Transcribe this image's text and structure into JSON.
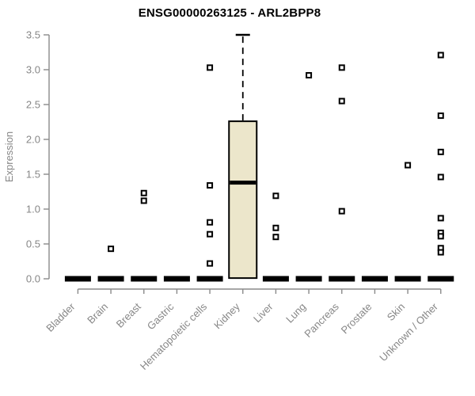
{
  "header": {
    "title": "ENSG00000263125 - ARL2BPP8"
  },
  "chart_data": {
    "type": "boxplot",
    "title": "ENSG00000263125 - ARL2BPP8",
    "xlabel": "",
    "ylabel": "Expression",
    "ylim": [
      0.0,
      3.5
    ],
    "yticks": [
      0.0,
      0.5,
      1.0,
      1.5,
      2.0,
      2.5,
      3.0,
      3.5
    ],
    "grid": false,
    "legend": "none",
    "categories": [
      "Bladder",
      "Brain",
      "Breast",
      "Gastric",
      "Hematopoietic cells",
      "Kidney",
      "Liver",
      "Lung",
      "Pancreas",
      "Prostate",
      "Skin",
      "Unknown / Other"
    ],
    "boxes": [
      {
        "category": "Bladder",
        "q1": 0,
        "median": 0,
        "q3": 0,
        "whisker_low": 0,
        "whisker_high": 0,
        "outliers": []
      },
      {
        "category": "Brain",
        "q1": 0,
        "median": 0,
        "q3": 0,
        "whisker_low": 0,
        "whisker_high": 0,
        "outliers": [
          0.43
        ]
      },
      {
        "category": "Breast",
        "q1": 0,
        "median": 0,
        "q3": 0,
        "whisker_low": 0,
        "whisker_high": 0,
        "outliers": [
          1.23,
          1.12
        ]
      },
      {
        "category": "Gastric",
        "q1": 0,
        "median": 0,
        "q3": 0,
        "whisker_low": 0,
        "whisker_high": 0,
        "outliers": []
      },
      {
        "category": "Hematopoietic cells",
        "q1": 0,
        "median": 0,
        "q3": 0,
        "whisker_low": 0,
        "whisker_high": 0,
        "outliers": [
          3.03,
          1.34,
          0.81,
          0.64,
          0.22
        ]
      },
      {
        "category": "Kidney",
        "q1": 0.01,
        "median": 1.38,
        "q3": 2.26,
        "whisker_low": 0.01,
        "whisker_high": 3.5,
        "outliers": []
      },
      {
        "category": "Liver",
        "q1": 0,
        "median": 0,
        "q3": 0,
        "whisker_low": 0,
        "whisker_high": 0,
        "outliers": [
          1.19,
          0.73,
          0.6
        ]
      },
      {
        "category": "Lung",
        "q1": 0,
        "median": 0,
        "q3": 0,
        "whisker_low": 0,
        "whisker_high": 0,
        "outliers": [
          2.92
        ]
      },
      {
        "category": "Pancreas",
        "q1": 0,
        "median": 0,
        "q3": 0,
        "whisker_low": 0,
        "whisker_high": 0,
        "outliers": [
          3.03,
          2.55,
          0.97
        ]
      },
      {
        "category": "Prostate",
        "q1": 0,
        "median": 0,
        "q3": 0,
        "whisker_low": 0,
        "whisker_high": 0,
        "outliers": []
      },
      {
        "category": "Skin",
        "q1": 0,
        "median": 0,
        "q3": 0,
        "whisker_low": 0,
        "whisker_high": 0,
        "outliers": [
          1.63
        ]
      },
      {
        "category": "Unknown / Other",
        "q1": 0,
        "median": 0,
        "q3": 0,
        "whisker_low": 0,
        "whisker_high": 0,
        "outliers": [
          3.21,
          2.34,
          1.82,
          1.46,
          0.87,
          0.66,
          0.61,
          0.44,
          0.38
        ]
      }
    ],
    "colors": {
      "box_fill": "#ECE6CB",
      "box_stroke": "#000000",
      "median": "#000000",
      "zero_bar": "#000000",
      "outlier_stroke": "#000000",
      "outlier_fill": "#ffffff",
      "axis_line": "#8a8a8a",
      "axis_text": "#878787",
      "title_text": "#000000",
      "background": "#ffffff"
    }
  }
}
